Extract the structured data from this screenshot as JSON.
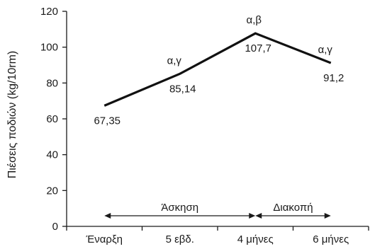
{
  "chart_data": {
    "type": "line",
    "ylabel": "Πιέσεις ποδιών (kg/10rm)",
    "ylim": [
      0,
      120
    ],
    "yticks": [
      0,
      20,
      40,
      60,
      80,
      100,
      120
    ],
    "categories": [
      "Έναρξη",
      "5 εβδ.",
      "4 μήνες",
      "6 μήνες"
    ],
    "values": [
      67.35,
      85.14,
      107.7,
      91.2
    ],
    "value_labels": [
      "67,35",
      "85,14",
      "107,7",
      "91,2"
    ],
    "significance_labels": [
      "",
      "α,γ",
      "α,β",
      "α,γ"
    ],
    "periods": [
      {
        "label": "Άσκηση",
        "from": 0,
        "to": 2
      },
      {
        "label": "Διακοπή",
        "from": 2,
        "to": 3
      }
    ]
  }
}
